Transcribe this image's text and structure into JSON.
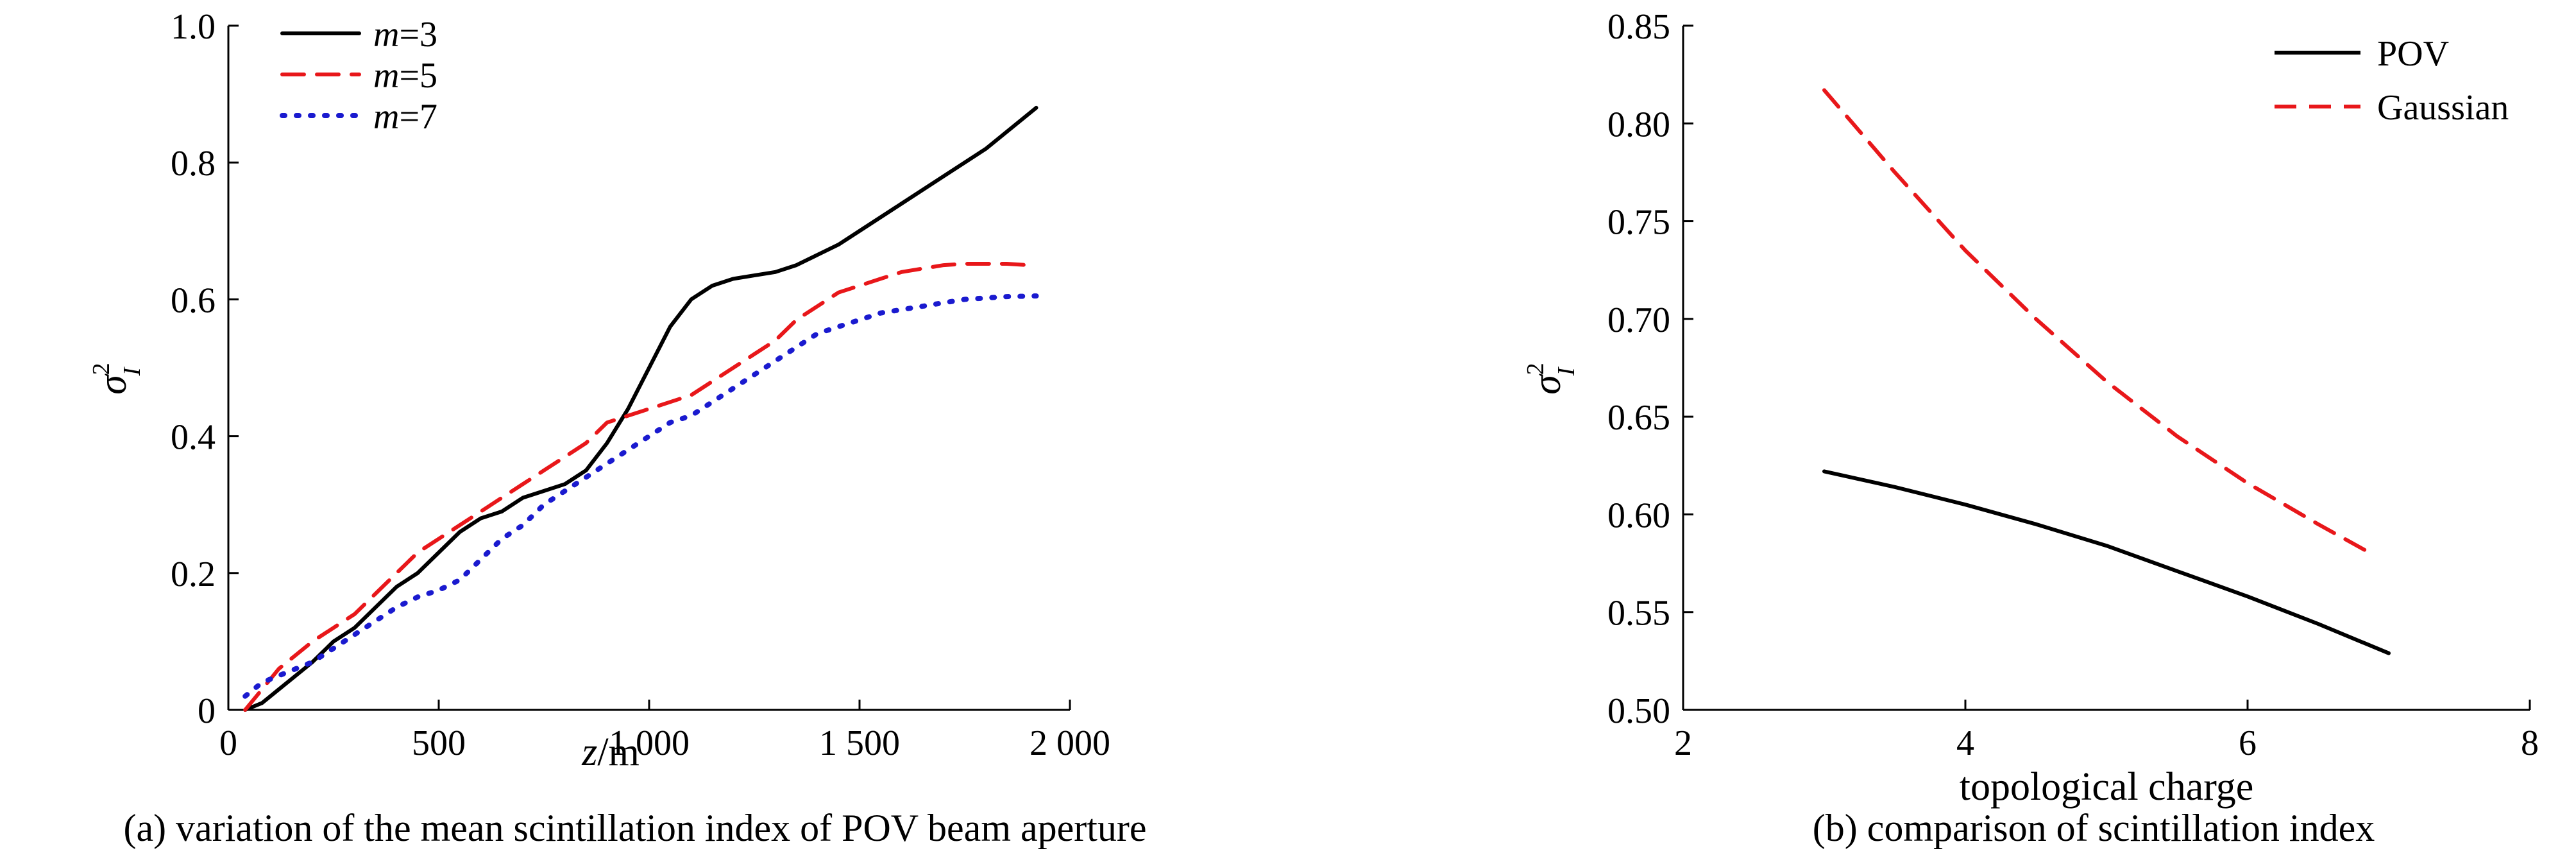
{
  "chart_data": [
    {
      "type": "line",
      "caption": "(a) variation of the mean scintillation index of POV beam aperture",
      "xlabel_italic": "z",
      "xlabel_unit": "/m",
      "ylabel": "σ²_I",
      "xlim": [
        0,
        2000
      ],
      "ylim": [
        0,
        1.0
      ],
      "xticks": [
        0,
        500,
        1000,
        1500,
        2000
      ],
      "xtick_labels": [
        "0",
        "500",
        "1 000",
        "1 500",
        "2 000"
      ],
      "yticks": [
        0,
        0.2,
        0.4,
        0.6,
        0.8,
        1.0
      ],
      "ytick_labels": [
        "0",
        "0.2",
        "0.4",
        "0.6",
        "0.8",
        "1.0"
      ],
      "grid": false,
      "legend_position": "top-left",
      "series": [
        {
          "name": "m=3",
          "legend_var": "m",
          "legend_val": "=3",
          "color": "#000000",
          "dash": "solid",
          "x": [
            40,
            80,
            120,
            160,
            200,
            250,
            300,
            350,
            400,
            450,
            500,
            550,
            600,
            650,
            700,
            750,
            800,
            850,
            900,
            950,
            1000,
            1050,
            1100,
            1150,
            1200,
            1250,
            1300,
            1350,
            1400,
            1450,
            1500,
            1600,
            1700,
            1800,
            1920
          ],
          "y": [
            0.0,
            0.01,
            0.03,
            0.05,
            0.07,
            0.1,
            0.12,
            0.15,
            0.18,
            0.2,
            0.23,
            0.26,
            0.28,
            0.29,
            0.31,
            0.32,
            0.33,
            0.35,
            0.39,
            0.44,
            0.5,
            0.56,
            0.6,
            0.62,
            0.63,
            0.635,
            0.64,
            0.65,
            0.665,
            0.68,
            0.7,
            0.74,
            0.78,
            0.82,
            0.88
          ]
        },
        {
          "name": "m=5",
          "legend_var": "m",
          "legend_val": "=5",
          "color": "#e8171a",
          "dash": "dashed",
          "x": [
            40,
            80,
            120,
            160,
            200,
            250,
            300,
            350,
            400,
            450,
            500,
            550,
            600,
            650,
            700,
            750,
            800,
            850,
            900,
            950,
            1000,
            1050,
            1100,
            1150,
            1200,
            1250,
            1300,
            1350,
            1400,
            1450,
            1500,
            1550,
            1600,
            1650,
            1700,
            1750,
            1800,
            1850,
            1900
          ],
          "y": [
            0.0,
            0.03,
            0.06,
            0.08,
            0.1,
            0.12,
            0.14,
            0.17,
            0.2,
            0.23,
            0.25,
            0.27,
            0.29,
            0.31,
            0.33,
            0.35,
            0.37,
            0.39,
            0.42,
            0.43,
            0.44,
            0.45,
            0.46,
            0.48,
            0.5,
            0.52,
            0.54,
            0.57,
            0.59,
            0.61,
            0.62,
            0.63,
            0.64,
            0.645,
            0.65,
            0.652,
            0.652,
            0.652,
            0.65
          ]
        },
        {
          "name": "m=7",
          "legend_var": "m",
          "legend_val": "=7",
          "color": "#1a1acf",
          "dash": "dotted",
          "x": [
            40,
            80,
            120,
            160,
            200,
            250,
            300,
            350,
            400,
            450,
            500,
            550,
            600,
            650,
            700,
            750,
            800,
            850,
            900,
            950,
            1000,
            1050,
            1100,
            1150,
            1200,
            1250,
            1300,
            1350,
            1400,
            1450,
            1500,
            1550,
            1600,
            1650,
            1700,
            1750,
            1800,
            1850,
            1920
          ],
          "y": [
            0.02,
            0.04,
            0.05,
            0.06,
            0.07,
            0.09,
            0.11,
            0.13,
            0.15,
            0.165,
            0.175,
            0.19,
            0.22,
            0.25,
            0.27,
            0.3,
            0.32,
            0.34,
            0.36,
            0.38,
            0.4,
            0.42,
            0.43,
            0.45,
            0.47,
            0.49,
            0.51,
            0.53,
            0.55,
            0.56,
            0.57,
            0.58,
            0.585,
            0.59,
            0.595,
            0.6,
            0.602,
            0.604,
            0.605
          ]
        }
      ]
    },
    {
      "type": "line",
      "caption": "(b) comparison of scintillation index",
      "xlabel": "topological charge",
      "ylabel": "σ²_I",
      "xlim": [
        2,
        8
      ],
      "ylim": [
        0.5,
        0.85
      ],
      "xticks": [
        2,
        4,
        6,
        8
      ],
      "xtick_labels": [
        "2",
        "4",
        "6",
        "8"
      ],
      "yticks": [
        0.5,
        0.55,
        0.6,
        0.65,
        0.7,
        0.75,
        0.8,
        0.85
      ],
      "ytick_labels": [
        "0.50",
        "0.55",
        "0.60",
        "0.65",
        "0.70",
        "0.75",
        "0.80",
        "0.85"
      ],
      "grid": false,
      "legend_position": "top-right",
      "series": [
        {
          "name": "POV",
          "color": "#000000",
          "dash": "solid",
          "x": [
            3,
            3.5,
            4,
            4.5,
            5,
            5.5,
            6,
            6.5,
            7
          ],
          "y": [
            0.622,
            0.614,
            0.605,
            0.595,
            0.584,
            0.571,
            0.558,
            0.544,
            0.529
          ]
        },
        {
          "name": "Gaussian",
          "color": "#e8171a",
          "dash": "dashed",
          "x": [
            3,
            3.5,
            4,
            4.5,
            5,
            5.5,
            6,
            6.5,
            6.9
          ],
          "y": [
            0.817,
            0.775,
            0.735,
            0.7,
            0.668,
            0.64,
            0.616,
            0.595,
            0.579
          ]
        }
      ]
    }
  ]
}
